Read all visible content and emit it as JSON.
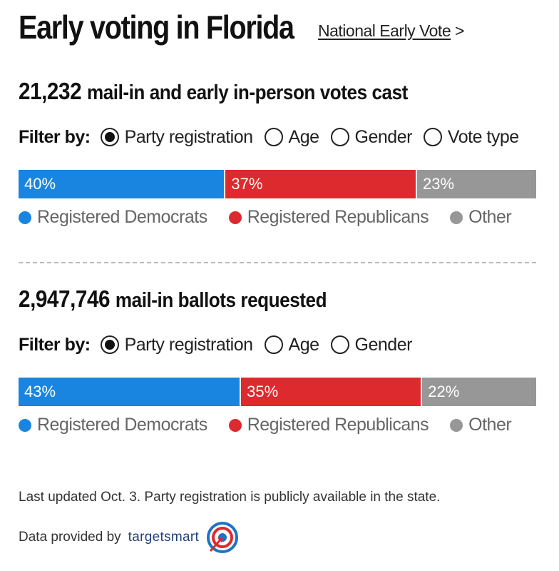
{
  "header": {
    "title": "Early voting in Florida",
    "link_label": "National Early Vote",
    "link_arrow": ">"
  },
  "sections": [
    {
      "count": "21,232",
      "headline_rest": "mail-in and early in-person votes cast",
      "filter_label": "Filter by:",
      "filters": [
        {
          "label": "Party registration",
          "selected": true
        },
        {
          "label": "Age",
          "selected": false
        },
        {
          "label": "Gender",
          "selected": false
        },
        {
          "label": "Vote type",
          "selected": false
        }
      ]
    },
    {
      "count": "2,947,746",
      "headline_rest": "mail-in ballots requested",
      "filter_label": "Filter by:",
      "filters": [
        {
          "label": "Party registration",
          "selected": true
        },
        {
          "label": "Age",
          "selected": false
        },
        {
          "label": "Gender",
          "selected": false
        }
      ]
    }
  ],
  "chart_data": [
    {
      "type": "bar",
      "orientation": "horizontal-stacked",
      "title": "21,232 mail-in and early in-person votes cast",
      "categories": [
        "Registered Democrats",
        "Registered Republicans",
        "Other"
      ],
      "values": [
        40,
        37,
        23
      ],
      "labels": [
        "40%",
        "37%",
        "23%"
      ],
      "colors": [
        "#1a85e0",
        "#dd2a2e",
        "#979797"
      ],
      "legend": "bottom"
    },
    {
      "type": "bar",
      "orientation": "horizontal-stacked",
      "title": "2,947,746 mail-in ballots requested",
      "categories": [
        "Registered Democrats",
        "Registered Republicans",
        "Other"
      ],
      "values": [
        43,
        35,
        22
      ],
      "labels": [
        "43%",
        "35%",
        "22%"
      ],
      "colors": [
        "#1a85e0",
        "#dd2a2e",
        "#979797"
      ],
      "legend": "bottom"
    }
  ],
  "footer": {
    "note": "Last updated Oct. 3. Party registration is publicly available in the state.",
    "provider_text": "Data provided by",
    "brand": "targetsmart",
    "logo_icon": "target-icon"
  }
}
